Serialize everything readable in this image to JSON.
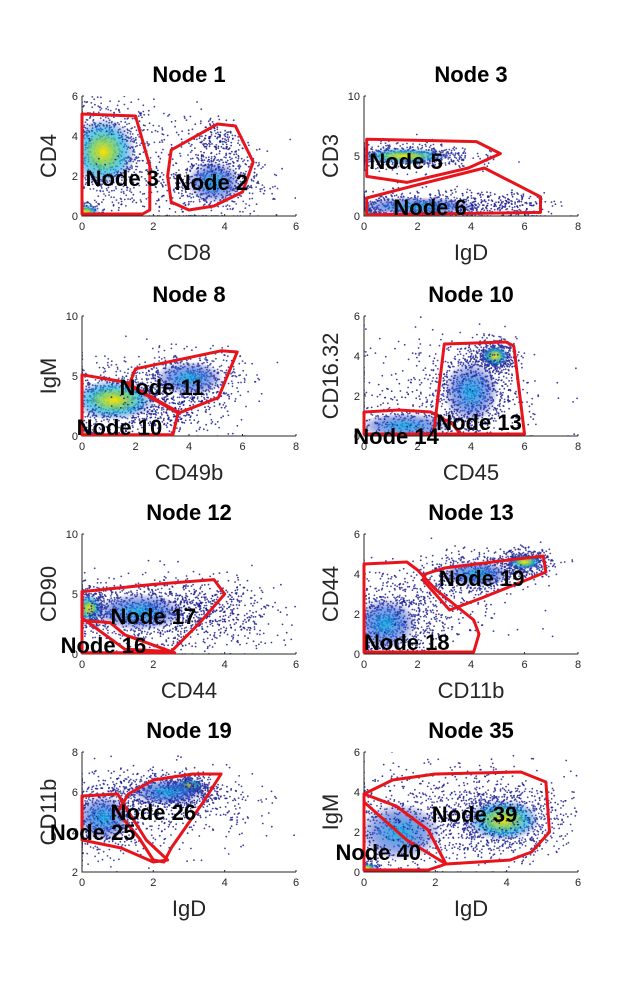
{
  "figure": {
    "colors": {
      "gate": "#e8141c",
      "density_low": "#1a1a8c",
      "density_mid": "#00a6e0",
      "density_high": "#ffe000"
    }
  },
  "chart_data": [
    {
      "type": "scatter",
      "title": "Node 1",
      "xlabel": "CD8",
      "ylabel": "CD4",
      "xlim": [
        0,
        6
      ],
      "ylim": [
        0,
        6
      ],
      "xticks": [
        0,
        2,
        4,
        6
      ],
      "yticks": [
        0,
        2,
        4,
        6
      ],
      "clusters": [
        {
          "cx": 0.6,
          "cy": 3.2,
          "sx": 0.7,
          "sy": 1.3,
          "n": 900,
          "peak": "high"
        },
        {
          "cx": 0.1,
          "cy": 0.2,
          "sx": 0.3,
          "sy": 0.3,
          "n": 200,
          "peak": "high"
        },
        {
          "cx": 3.7,
          "cy": 1.7,
          "sx": 0.6,
          "sy": 0.8,
          "n": 600,
          "peak": "mid"
        },
        {
          "cx": 3.8,
          "cy": 3.8,
          "sx": 0.4,
          "sy": 0.6,
          "n": 150,
          "peak": "low"
        },
        {
          "cx": 2.5,
          "cy": 2.0,
          "sx": 1.4,
          "sy": 1.8,
          "n": 300,
          "peak": "low"
        }
      ],
      "gates": [
        {
          "label": "Node 3",
          "label_at": [
            0.1,
            1.5
          ],
          "polygon": [
            [
              0.0,
              5.1
            ],
            [
              1.5,
              5.0
            ],
            [
              1.9,
              2.5
            ],
            [
              1.9,
              0.3
            ],
            [
              1.7,
              0.1
            ],
            [
              0.0,
              0.1
            ]
          ]
        },
        {
          "label": "Node 2",
          "label_at": [
            2.6,
            1.3
          ],
          "polygon": [
            [
              2.5,
              3.3
            ],
            [
              3.8,
              4.6
            ],
            [
              4.3,
              4.5
            ],
            [
              4.8,
              2.7
            ],
            [
              4.5,
              1.2
            ],
            [
              3.7,
              0.5
            ],
            [
              3.0,
              0.3
            ],
            [
              2.5,
              0.7
            ],
            [
              2.4,
              2.0
            ]
          ]
        }
      ]
    },
    {
      "type": "scatter",
      "title": "Node 3",
      "xlabel": "IgD",
      "ylabel": "CD3",
      "xlim": [
        0,
        8
      ],
      "ylim": [
        0,
        10
      ],
      "xticks": [
        0,
        2,
        4,
        6,
        8
      ],
      "yticks": [
        0,
        5,
        10
      ],
      "clusters": [
        {
          "cx": 1.5,
          "cy": 5.0,
          "sx": 1.3,
          "sy": 0.5,
          "n": 700,
          "peak": "high"
        },
        {
          "cx": 2.0,
          "cy": 0.8,
          "sx": 1.8,
          "sy": 0.6,
          "n": 800,
          "peak": "mid"
        },
        {
          "cx": 0.1,
          "cy": 0.2,
          "sx": 0.2,
          "sy": 0.2,
          "n": 200,
          "peak": "high"
        },
        {
          "cx": 5.5,
          "cy": 1.0,
          "sx": 0.8,
          "sy": 0.6,
          "n": 150,
          "peak": "low"
        }
      ],
      "gates": [
        {
          "label": "Node 5",
          "label_at": [
            0.2,
            3.9
          ],
          "polygon": [
            [
              0.1,
              6.4
            ],
            [
              4.2,
              6.2
            ],
            [
              5.1,
              5.2
            ],
            [
              3.9,
              4.0
            ],
            [
              1.6,
              2.8
            ],
            [
              0.1,
              3.3
            ]
          ]
        },
        {
          "label": "Node 6",
          "label_at": [
            1.1,
            0.1
          ],
          "polygon": [
            [
              0.1,
              1.5
            ],
            [
              2.0,
              2.6
            ],
            [
              4.5,
              4.0
            ],
            [
              6.6,
              1.6
            ],
            [
              6.6,
              0.3
            ],
            [
              0.1,
              0.1
            ]
          ]
        }
      ]
    },
    {
      "type": "scatter",
      "title": "Node 8",
      "xlabel": "CD49b",
      "ylabel": "IgM",
      "xlim": [
        0,
        8
      ],
      "ylim": [
        0,
        10
      ],
      "xticks": [
        0,
        2,
        4,
        6,
        8
      ],
      "yticks": [
        0,
        5,
        10
      ],
      "clusters": [
        {
          "cx": 1.2,
          "cy": 3.0,
          "sx": 1.2,
          "sy": 1.3,
          "n": 900,
          "peak": "high"
        },
        {
          "cx": 0.1,
          "cy": 0.2,
          "sx": 0.2,
          "sy": 0.2,
          "n": 200,
          "peak": "high"
        },
        {
          "cx": 4.0,
          "cy": 4.8,
          "sx": 1.0,
          "sy": 1.1,
          "n": 600,
          "peak": "mid"
        },
        {
          "cx": 3.3,
          "cy": 2.0,
          "sx": 1.2,
          "sy": 1.0,
          "n": 250,
          "peak": "low"
        }
      ],
      "gates": [
        {
          "label": "Node 10",
          "label_at": [
            -0.2,
            0.1
          ],
          "polygon": [
            [
              0.0,
              5.1
            ],
            [
              1.6,
              4.5
            ],
            [
              3.6,
              2.0
            ],
            [
              3.4,
              0.1
            ],
            [
              0.0,
              0.1
            ]
          ]
        },
        {
          "label": "Node 11",
          "label_at": [
            1.4,
            3.4
          ],
          "polygon": [
            [
              1.8,
              4.5
            ],
            [
              2.0,
              5.6
            ],
            [
              5.2,
              7.1
            ],
            [
              5.8,
              7.0
            ],
            [
              5.1,
              3.2
            ],
            [
              3.6,
              1.9
            ],
            [
              1.7,
              4.3
            ]
          ]
        }
      ]
    },
    {
      "type": "scatter",
      "title": "Node 10",
      "xlabel": "CD45",
      "ylabel": "CD16.32",
      "xlim": [
        0,
        8
      ],
      "ylim": [
        0,
        6
      ],
      "xticks": [
        0,
        2,
        4,
        6,
        8
      ],
      "yticks": [
        0,
        2,
        4,
        6
      ],
      "clusters": [
        {
          "cx": 4.9,
          "cy": 4.0,
          "sx": 0.4,
          "sy": 0.4,
          "n": 500,
          "peak": "high"
        },
        {
          "cx": 4.0,
          "cy": 2.2,
          "sx": 0.8,
          "sy": 1.2,
          "n": 800,
          "peak": "mid"
        },
        {
          "cx": 1.5,
          "cy": 0.5,
          "sx": 1.3,
          "sy": 0.5,
          "n": 400,
          "peak": "mid"
        },
        {
          "cx": 3.0,
          "cy": 2.0,
          "sx": 2.0,
          "sy": 1.6,
          "n": 300,
          "peak": "low"
        }
      ],
      "gates": [
        {
          "label": "Node 13",
          "label_at": [
            2.7,
            0.3
          ],
          "polygon": [
            [
              3.0,
              4.6
            ],
            [
              5.3,
              4.7
            ],
            [
              5.6,
              4.5
            ],
            [
              6.0,
              0.1
            ],
            [
              2.6,
              0.1
            ],
            [
              2.9,
              3.5
            ]
          ]
        },
        {
          "label": "Node 14",
          "label_at": [
            -0.4,
            -0.4
          ],
          "polygon": [
            [
              0.0,
              1.2
            ],
            [
              1.3,
              1.3
            ],
            [
              2.5,
              1.2
            ],
            [
              3.3,
              0.6
            ],
            [
              3.6,
              0.1
            ],
            [
              0.0,
              0.1
            ]
          ]
        }
      ]
    },
    {
      "type": "scatter",
      "title": "Node 12",
      "xlabel": "CD44",
      "ylabel": "CD90",
      "xlim": [
        0,
        6
      ],
      "ylim": [
        0,
        10
      ],
      "xticks": [
        0,
        2,
        4,
        6
      ],
      "yticks": [
        0,
        5,
        10
      ],
      "clusters": [
        {
          "cx": 0.2,
          "cy": 3.8,
          "sx": 0.3,
          "sy": 0.9,
          "n": 400,
          "peak": "high"
        },
        {
          "cx": 1.6,
          "cy": 3.5,
          "sx": 1.0,
          "sy": 1.2,
          "n": 900,
          "peak": "mid"
        },
        {
          "cx": 3.2,
          "cy": 3.5,
          "sx": 0.9,
          "sy": 1.5,
          "n": 400,
          "peak": "low"
        },
        {
          "cx": 4.5,
          "cy": 3.0,
          "sx": 0.8,
          "sy": 1.6,
          "n": 150,
          "peak": "low"
        }
      ],
      "gates": [
        {
          "label": "Node 17",
          "label_at": [
            0.8,
            2.5
          ],
          "polygon": [
            [
              0.0,
              5.2
            ],
            [
              2.0,
              5.8
            ],
            [
              3.7,
              6.2
            ],
            [
              4.0,
              5.0
            ],
            [
              3.3,
              2.6
            ],
            [
              2.5,
              0.2
            ],
            [
              1.2,
              0.4
            ],
            [
              0.0,
              3.0
            ]
          ]
        },
        {
          "label": "Node 16",
          "label_at": [
            -0.6,
            0.1
          ],
          "polygon": [
            [
              0.0,
              2.8
            ],
            [
              0.8,
              2.6
            ],
            [
              1.2,
              1.6
            ],
            [
              2.6,
              0.1
            ],
            [
              0.0,
              0.1
            ]
          ]
        }
      ]
    },
    {
      "type": "scatter",
      "title": "Node 13",
      "xlabel": "CD11b",
      "ylabel": "CD44",
      "xlim": [
        0,
        8
      ],
      "ylim": [
        0,
        6
      ],
      "xticks": [
        0,
        2,
        4,
        6,
        8
      ],
      "yticks": [
        0,
        2,
        4,
        6
      ],
      "clusters": [
        {
          "cx": 6.0,
          "cy": 4.6,
          "sx": 0.5,
          "sy": 0.3,
          "n": 500,
          "peak": "high"
        },
        {
          "cx": 4.2,
          "cy": 4.0,
          "sx": 1.0,
          "sy": 0.5,
          "n": 500,
          "peak": "mid"
        },
        {
          "cx": 0.8,
          "cy": 1.5,
          "sx": 0.9,
          "sy": 1.0,
          "n": 900,
          "peak": "mid"
        },
        {
          "cx": 2.5,
          "cy": 2.5,
          "sx": 1.5,
          "sy": 1.2,
          "n": 300,
          "peak": "low"
        }
      ],
      "gates": [
        {
          "label": "Node 19",
          "label_at": [
            2.8,
            3.4
          ],
          "polygon": [
            [
              2.3,
              4.0
            ],
            [
              3.0,
              4.3
            ],
            [
              5.4,
              4.7
            ],
            [
              6.7,
              4.9
            ],
            [
              6.8,
              4.1
            ],
            [
              5.7,
              3.5
            ],
            [
              4.4,
              2.8
            ],
            [
              3.2,
              2.2
            ],
            [
              2.2,
              3.7
            ]
          ]
        },
        {
          "label": "Node 18",
          "label_at": [
            0.0,
            0.2
          ],
          "polygon": [
            [
              0.0,
              4.5
            ],
            [
              1.6,
              4.6
            ],
            [
              2.0,
              4.2
            ],
            [
              2.7,
              3.2
            ],
            [
              4.1,
              1.7
            ],
            [
              4.3,
              1.0
            ],
            [
              4.1,
              0.1
            ],
            [
              0.0,
              0.1
            ]
          ]
        }
      ]
    },
    {
      "type": "scatter",
      "title": "Node 19",
      "xlabel": "IgD",
      "ylabel": "CD11b",
      "xlim": [
        0,
        6
      ],
      "ylim": [
        2,
        8
      ],
      "xticks": [
        0,
        2,
        4,
        6
      ],
      "yticks": [
        2,
        4,
        6,
        8
      ],
      "clusters": [
        {
          "cx": 3.0,
          "cy": 6.3,
          "sx": 0.3,
          "sy": 0.3,
          "n": 300,
          "peak": "high"
        },
        {
          "cx": 2.4,
          "cy": 6.0,
          "sx": 0.8,
          "sy": 0.5,
          "n": 700,
          "peak": "mid"
        },
        {
          "cx": 0.6,
          "cy": 4.7,
          "sx": 0.6,
          "sy": 0.9,
          "n": 700,
          "peak": "mid"
        },
        {
          "cx": 2.5,
          "cy": 5.0,
          "sx": 1.5,
          "sy": 1.0,
          "n": 300,
          "peak": "low"
        }
      ],
      "gates": [
        {
          "label": "Node 26",
          "label_at": [
            0.8,
            4.6
          ],
          "polygon": [
            [
              1.3,
              5.9
            ],
            [
              2.0,
              6.6
            ],
            [
              3.1,
              6.9
            ],
            [
              3.9,
              6.9
            ],
            [
              3.4,
              5.5
            ],
            [
              2.5,
              3.2
            ],
            [
              2.3,
              2.5
            ],
            [
              2.0,
              2.6
            ],
            [
              1.6,
              3.7
            ],
            [
              1.0,
              5.0
            ]
          ]
        },
        {
          "label": "Node 25",
          "label_at": [
            -0.9,
            3.6
          ],
          "polygon": [
            [
              0.0,
              5.8
            ],
            [
              1.0,
              5.9
            ],
            [
              1.2,
              5.3
            ],
            [
              1.8,
              3.6
            ],
            [
              2.4,
              2.6
            ],
            [
              2.0,
              2.5
            ],
            [
              1.1,
              3.2
            ],
            [
              0.0,
              3.6
            ]
          ]
        }
      ]
    },
    {
      "type": "scatter",
      "title": "Node 35",
      "xlabel": "IgD",
      "ylabel": "IgM",
      "xlim": [
        0,
        6
      ],
      "ylim": [
        0,
        6
      ],
      "xticks": [
        0,
        2,
        4,
        6
      ],
      "yticks": [
        0,
        2,
        4,
        6
      ],
      "clusters": [
        {
          "cx": 3.9,
          "cy": 2.6,
          "sx": 0.8,
          "sy": 0.8,
          "n": 1000,
          "peak": "high"
        },
        {
          "cx": 1.0,
          "cy": 2.0,
          "sx": 0.9,
          "sy": 1.1,
          "n": 500,
          "peak": "mid"
        },
        {
          "cx": 0.1,
          "cy": 0.2,
          "sx": 0.2,
          "sy": 0.2,
          "n": 150,
          "peak": "high"
        },
        {
          "cx": 2.6,
          "cy": 3.2,
          "sx": 1.6,
          "sy": 1.4,
          "n": 500,
          "peak": "low"
        }
      ],
      "gates": [
        {
          "label": "Node 39",
          "label_at": [
            1.9,
            2.5
          ],
          "polygon": [
            [
              0.0,
              3.9
            ],
            [
              0.8,
              4.6
            ],
            [
              2.0,
              4.9
            ],
            [
              4.4,
              5.0
            ],
            [
              5.1,
              4.5
            ],
            [
              5.2,
              2.0
            ],
            [
              4.7,
              1.0
            ],
            [
              4.1,
              0.6
            ],
            [
              2.3,
              0.4
            ],
            [
              1.2,
              1.6
            ],
            [
              0.0,
              3.5
            ]
          ]
        },
        {
          "label": "Node 40",
          "label_at": [
            -0.8,
            0.6
          ],
          "polygon": [
            [
              0.0,
              3.9
            ],
            [
              0.9,
              3.3
            ],
            [
              1.8,
              2.1
            ],
            [
              2.3,
              0.4
            ],
            [
              1.8,
              0.1
            ],
            [
              0.0,
              0.1
            ]
          ]
        }
      ]
    }
  ]
}
